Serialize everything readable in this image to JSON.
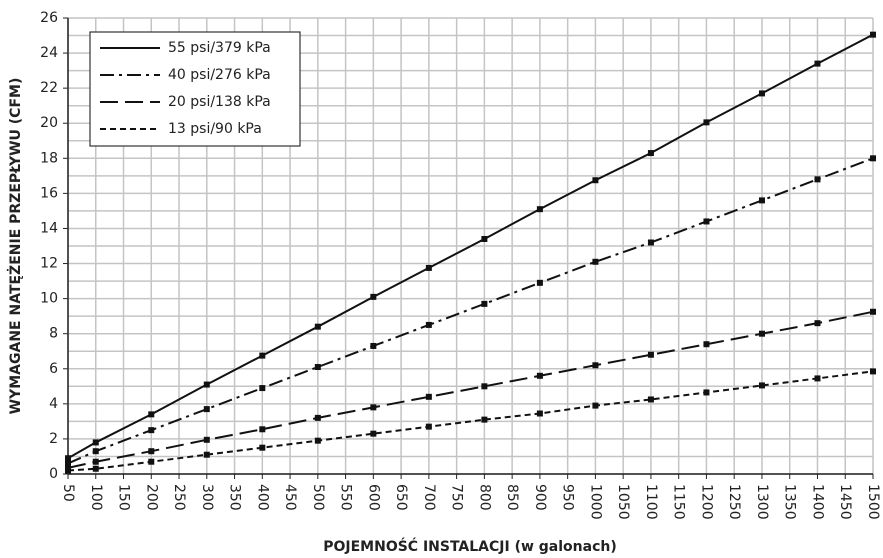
{
  "chart_data": {
    "type": "line",
    "y_label": "WYMAGANE NATĘŻENIE PRZEPŁYWU (CFM)",
    "x_label": "POJEMNOŚĆ INSTALACJI (w galonach)",
    "x": [
      50,
      100,
      200,
      300,
      400,
      500,
      600,
      700,
      800,
      900,
      1000,
      1100,
      1200,
      1300,
      1400,
      1500
    ],
    "series": [
      {
        "name": "55 psi/379 kPa",
        "color": "#111111",
        "dash": "none",
        "values": [
          0.9,
          1.8,
          3.4,
          5.1,
          6.75,
          8.4,
          10.1,
          11.75,
          13.4,
          15.1,
          16.75,
          18.3,
          20.05,
          21.7,
          23.4,
          25.05
        ]
      },
      {
        "name": "40 psi/276 kPa",
        "color": "#111111",
        "dash": "14 5 3 5",
        "values": [
          0.6,
          1.3,
          2.5,
          3.7,
          4.9,
          6.1,
          7.3,
          8.5,
          9.7,
          10.9,
          12.1,
          13.2,
          14.4,
          15.6,
          16.8,
          18.0
        ]
      },
      {
        "name": "20 psi/138 kPa",
        "color": "#111111",
        "dash": "18 7",
        "values": [
          0.35,
          0.7,
          1.3,
          1.95,
          2.55,
          3.2,
          3.8,
          4.4,
          5.0,
          5.6,
          6.2,
          6.8,
          7.4,
          8.0,
          8.6,
          9.25
        ]
      },
      {
        "name": "13 psi/90 kPa",
        "color": "#111111",
        "dash": "6 4",
        "values": [
          0.2,
          0.3,
          0.7,
          1.1,
          1.5,
          1.9,
          2.3,
          2.7,
          3.1,
          3.45,
          3.9,
          4.25,
          4.65,
          5.05,
          5.45,
          5.85
        ]
      }
    ],
    "xlim": [
      50,
      1500
    ],
    "xticks": [
      50,
      100,
      150,
      200,
      250,
      300,
      350,
      400,
      450,
      500,
      550,
      600,
      650,
      700,
      750,
      800,
      850,
      900,
      950,
      1000,
      1050,
      1100,
      1150,
      1200,
      1250,
      1300,
      1350,
      1400,
      1450,
      1500
    ],
    "ylim": [
      0,
      26
    ],
    "yticks": [
      0,
      2,
      4,
      6,
      8,
      10,
      12,
      14,
      16,
      18,
      20,
      22,
      24,
      26
    ],
    "y_minor_grid_step": 1,
    "grid": true,
    "legend": "upper left"
  }
}
